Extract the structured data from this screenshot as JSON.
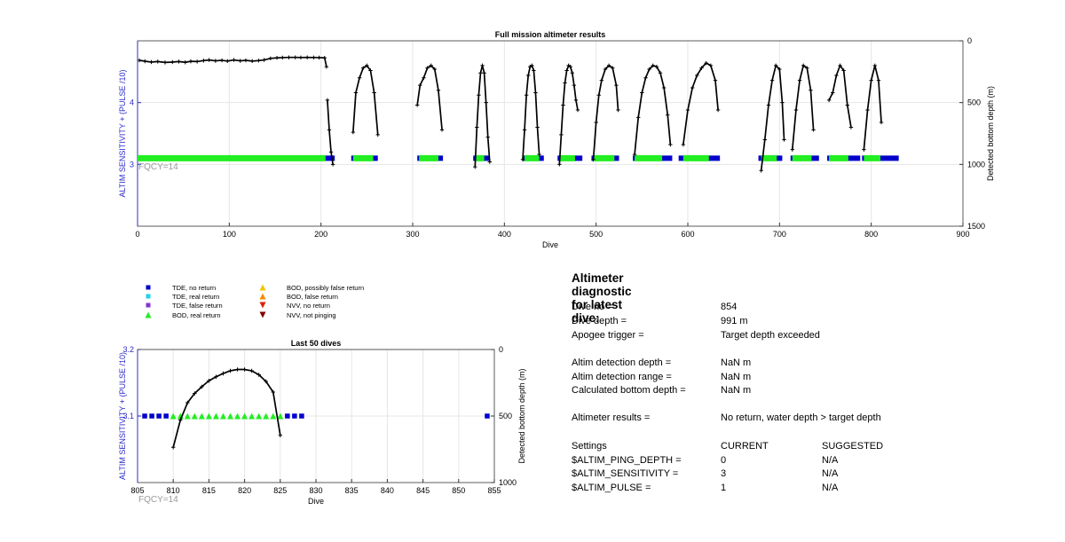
{
  "colors": {
    "axis_blue": "#2b2bc8",
    "tde_no_return": "#0000cc",
    "tde_real_return": "#22d3e6",
    "tde_false_return": "#8833cc",
    "bod_real_return": "#22ee22",
    "bod_possibly_false": "#f5c400",
    "bod_false_return": "#ff8800",
    "nvv_no_return": "#dd2200",
    "nvv_not_pinging": "#800000",
    "depth_line": "#000000",
    "grid": "#e6e6e6",
    "fqcy_text": "#9a9a9a"
  },
  "legend": [
    {
      "label": "TDE, no return",
      "marker": "square",
      "color": "#0000cc"
    },
    {
      "label": "TDE, real return",
      "marker": "square",
      "color": "#22d3e6"
    },
    {
      "label": "TDE, false return",
      "marker": "square",
      "color": "#8833cc"
    },
    {
      "label": "BOD, real return",
      "marker": "triangle-up",
      "color": "#22ee22"
    },
    {
      "label": "BOD, possibly false return",
      "marker": "triangle-up",
      "color": "#f5c400"
    },
    {
      "label": "BOD, false return",
      "marker": "triangle-up",
      "color": "#ff8800"
    },
    {
      "label": "NVV, no return",
      "marker": "triangle-down",
      "color": "#dd2200"
    },
    {
      "label": "NVV, not pinging",
      "marker": "triangle-down",
      "color": "#800000"
    }
  ],
  "chart_data": [
    {
      "type": "scatter",
      "title": "Full mission altimeter results",
      "xlabel": "Dive",
      "ylabel": "ALTIM SENSITIVITY + (PULSE /10)",
      "y2label": "Detected bottom depth (m)",
      "annotation": "FQCY=14",
      "xlim": [
        0,
        900
      ],
      "ylim": [
        2,
        5
      ],
      "y2lim": [
        1500,
        0
      ],
      "y2_reversed": true,
      "xticks": [
        "0",
        "100",
        "200",
        "300",
        "400",
        "500",
        "600",
        "700",
        "800",
        "900"
      ],
      "yticks": [
        "3",
        "4"
      ],
      "y2ticks": [
        "0",
        "500",
        "1000",
        "1500"
      ],
      "grid": true,
      "series": [
        {
          "name": "TDE, no return",
          "marker": "square",
          "y": 3.1,
          "x_ranges": [
            [
              0,
              215
            ],
            [
              233,
              262
            ],
            [
              305,
              333
            ],
            [
              366,
              384
            ],
            [
              420,
              443
            ],
            [
              458,
              485
            ],
            [
              495,
              525
            ],
            [
              540,
              583
            ],
            [
              590,
              635
            ],
            [
              677,
              703
            ],
            [
              712,
              743
            ],
            [
              752,
              788
            ],
            [
              790,
              830
            ]
          ]
        },
        {
          "name": "BOD, real return",
          "marker": "triangle-up",
          "y": 3.1,
          "x_ranges": [
            [
              0,
              205
            ],
            [
              235,
              257
            ],
            [
              307,
              328
            ],
            [
              368,
              378
            ],
            [
              422,
              438
            ],
            [
              460,
              477
            ],
            [
              497,
              520
            ],
            [
              542,
              572
            ],
            [
              595,
              623
            ],
            [
              680,
              697
            ],
            [
              714,
              735
            ],
            [
              754,
              775
            ],
            [
              792,
              810
            ]
          ]
        },
        {
          "name": "Detected bottom depth",
          "axis": "right",
          "segments": [
            {
              "x": [
                2,
                8,
                15,
                22,
                30,
                38,
                45,
                52,
                58,
                65,
                72,
                78,
                85,
                92,
                98,
                105,
                112,
                118,
                125,
                132,
                138,
                145,
                152,
                158,
                165,
                172,
                178,
                185,
                192,
                198,
                204,
                206
              ],
              "y": [
                158,
                165,
                172,
                168,
                175,
                172,
                168,
                174,
                166,
                168,
                160,
                155,
                162,
                158,
                164,
                155,
                162,
                158,
                164,
                160,
                155,
                142,
                138,
                136,
                134,
                134,
                135,
                134,
                135,
                136,
                138,
                210
              ]
            },
            {
              "x": [
                207,
                209,
                211,
                213
              ],
              "y": [
                480,
                720,
                900,
                1000
              ]
            },
            {
              "x": [
                235,
                238,
                242,
                246,
                250,
                254,
                258,
                262
              ],
              "y": [
                740,
                420,
                300,
                220,
                200,
                240,
                420,
                760
              ]
            },
            {
              "x": [
                305,
                308,
                312,
                316,
                320,
                324,
                328,
                332
              ],
              "y": [
                520,
                360,
                300,
                220,
                200,
                230,
                400,
                720
              ]
            },
            {
              "x": [
                368,
                370,
                372,
                374,
                376,
                378,
                380,
                382,
                384
              ],
              "y": [
                1020,
                700,
                440,
                260,
                200,
                260,
                500,
                780,
                980
              ]
            },
            {
              "x": [
                420,
                422,
                424,
                426,
                428,
                430,
                432,
                434,
                436,
                438
              ],
              "y": [
                960,
                720,
                440,
                280,
                210,
                200,
                240,
                420,
                700,
                920
              ]
            },
            {
              "x": [
                460,
                462,
                464,
                466,
                468,
                470,
                472,
                474,
                476,
                478,
                480
              ],
              "y": [
                1000,
                760,
                520,
                340,
                240,
                200,
                210,
                260,
                360,
                480,
                560
              ]
            },
            {
              "x": [
                497,
                500,
                503,
                506,
                510,
                514,
                518,
                522,
                524
              ],
              "y": [
                960,
                660,
                440,
                320,
                230,
                200,
                220,
                360,
                560
              ]
            },
            {
              "x": [
                542,
                546,
                550,
                554,
                558,
                562,
                566,
                570,
                574,
                578,
                581
              ],
              "y": [
                920,
                620,
                420,
                300,
                230,
                200,
                210,
                260,
                380,
                600,
                840
              ]
            },
            {
              "x": [
                595,
                600,
                605,
                610,
                615,
                620,
                625,
                630,
                633
              ],
              "y": [
                840,
                560,
                380,
                280,
                220,
                180,
                200,
                320,
                560
              ]
            },
            {
              "x": [
                680,
                684,
                688,
                692,
                696,
                700,
                703,
                705
              ],
              "y": [
                1050,
                800,
                520,
                320,
                200,
                230,
                500,
                800
              ]
            },
            {
              "x": [
                714,
                718,
                722,
                726,
                730,
                734,
                737
              ],
              "y": [
                880,
                560,
                320,
                200,
                220,
                400,
                720
              ]
            },
            {
              "x": [
                754,
                758,
                762,
                766,
                770,
                774,
                778
              ],
              "y": [
                480,
                420,
                280,
                200,
                240,
                520,
                700
              ]
            },
            {
              "x": [
                792,
                796,
                800,
                804,
                808,
                811
              ],
              "y": [
                880,
                560,
                320,
                200,
                320,
                660
              ]
            }
          ]
        }
      ]
    },
    {
      "type": "scatter",
      "title": "Last 50 dives",
      "xlabel": "Dive",
      "ylabel": "ALTIM SENSITIVITY + (PULSE /10)",
      "y2label": "Detected bottom depth (m)",
      "annotation": "FQCY=14",
      "xlim": [
        805,
        855
      ],
      "ylim": [
        3.0,
        3.2
      ],
      "y2lim": [
        1000,
        0
      ],
      "y2_reversed": true,
      "xticks": [
        "805",
        "810",
        "815",
        "820",
        "825",
        "830",
        "835",
        "840",
        "845",
        "850",
        "855"
      ],
      "yticks": [
        "3.1",
        "3.2"
      ],
      "y2ticks": [
        "0",
        "500",
        "1000"
      ],
      "grid": true,
      "series": [
        {
          "name": "TDE, no return",
          "marker": "square",
          "y": 3.1,
          "x": [
            806,
            807,
            808,
            809,
            826,
            827,
            828,
            854
          ]
        },
        {
          "name": "BOD, real return",
          "marker": "triangle-up",
          "y": 3.1,
          "x": [
            810,
            811,
            812,
            813,
            814,
            815,
            816,
            817,
            818,
            819,
            820,
            821,
            822,
            823,
            824,
            825
          ]
        },
        {
          "name": "Detected bottom depth",
          "axis": "right",
          "x": [
            810,
            811,
            812,
            813,
            814,
            815,
            816,
            817,
            818,
            819,
            820,
            821,
            822,
            823,
            824,
            825
          ],
          "y": [
            735,
            530,
            400,
            330,
            280,
            235,
            205,
            180,
            160,
            150,
            150,
            160,
            190,
            240,
            320,
            645
          ]
        }
      ]
    }
  ],
  "diagnostic": {
    "title": "Altimeter diagnostic for latest dive:",
    "rows": [
      {
        "label": "Dive no =",
        "value": "854"
      },
      {
        "label": "Dive depth =",
        "value": "991 m"
      },
      {
        "label": "Apogee trigger =",
        "value": "Target depth exceeded"
      },
      {
        "label": "Altim detection depth =",
        "value": "NaN m"
      },
      {
        "label": "Altim detection range =",
        "value": "NaN m"
      },
      {
        "label": "Calculated bottom depth =",
        "value": "NaN m"
      },
      {
        "label": "Altimeter results =",
        "value": "No return, water depth > target depth"
      }
    ],
    "settings": {
      "header": {
        "label": "Settings",
        "current": "CURRENT",
        "suggested": "SUGGESTED"
      },
      "rows": [
        {
          "label": "$ALTIM_PING_DEPTH =",
          "current": "0",
          "suggested": "N/A"
        },
        {
          "label": "$ALTIM_SENSITIVITY =",
          "current": "3",
          "suggested": "N/A"
        },
        {
          "label": "$ALTIM_PULSE =",
          "current": "1",
          "suggested": "N/A"
        }
      ]
    }
  }
}
